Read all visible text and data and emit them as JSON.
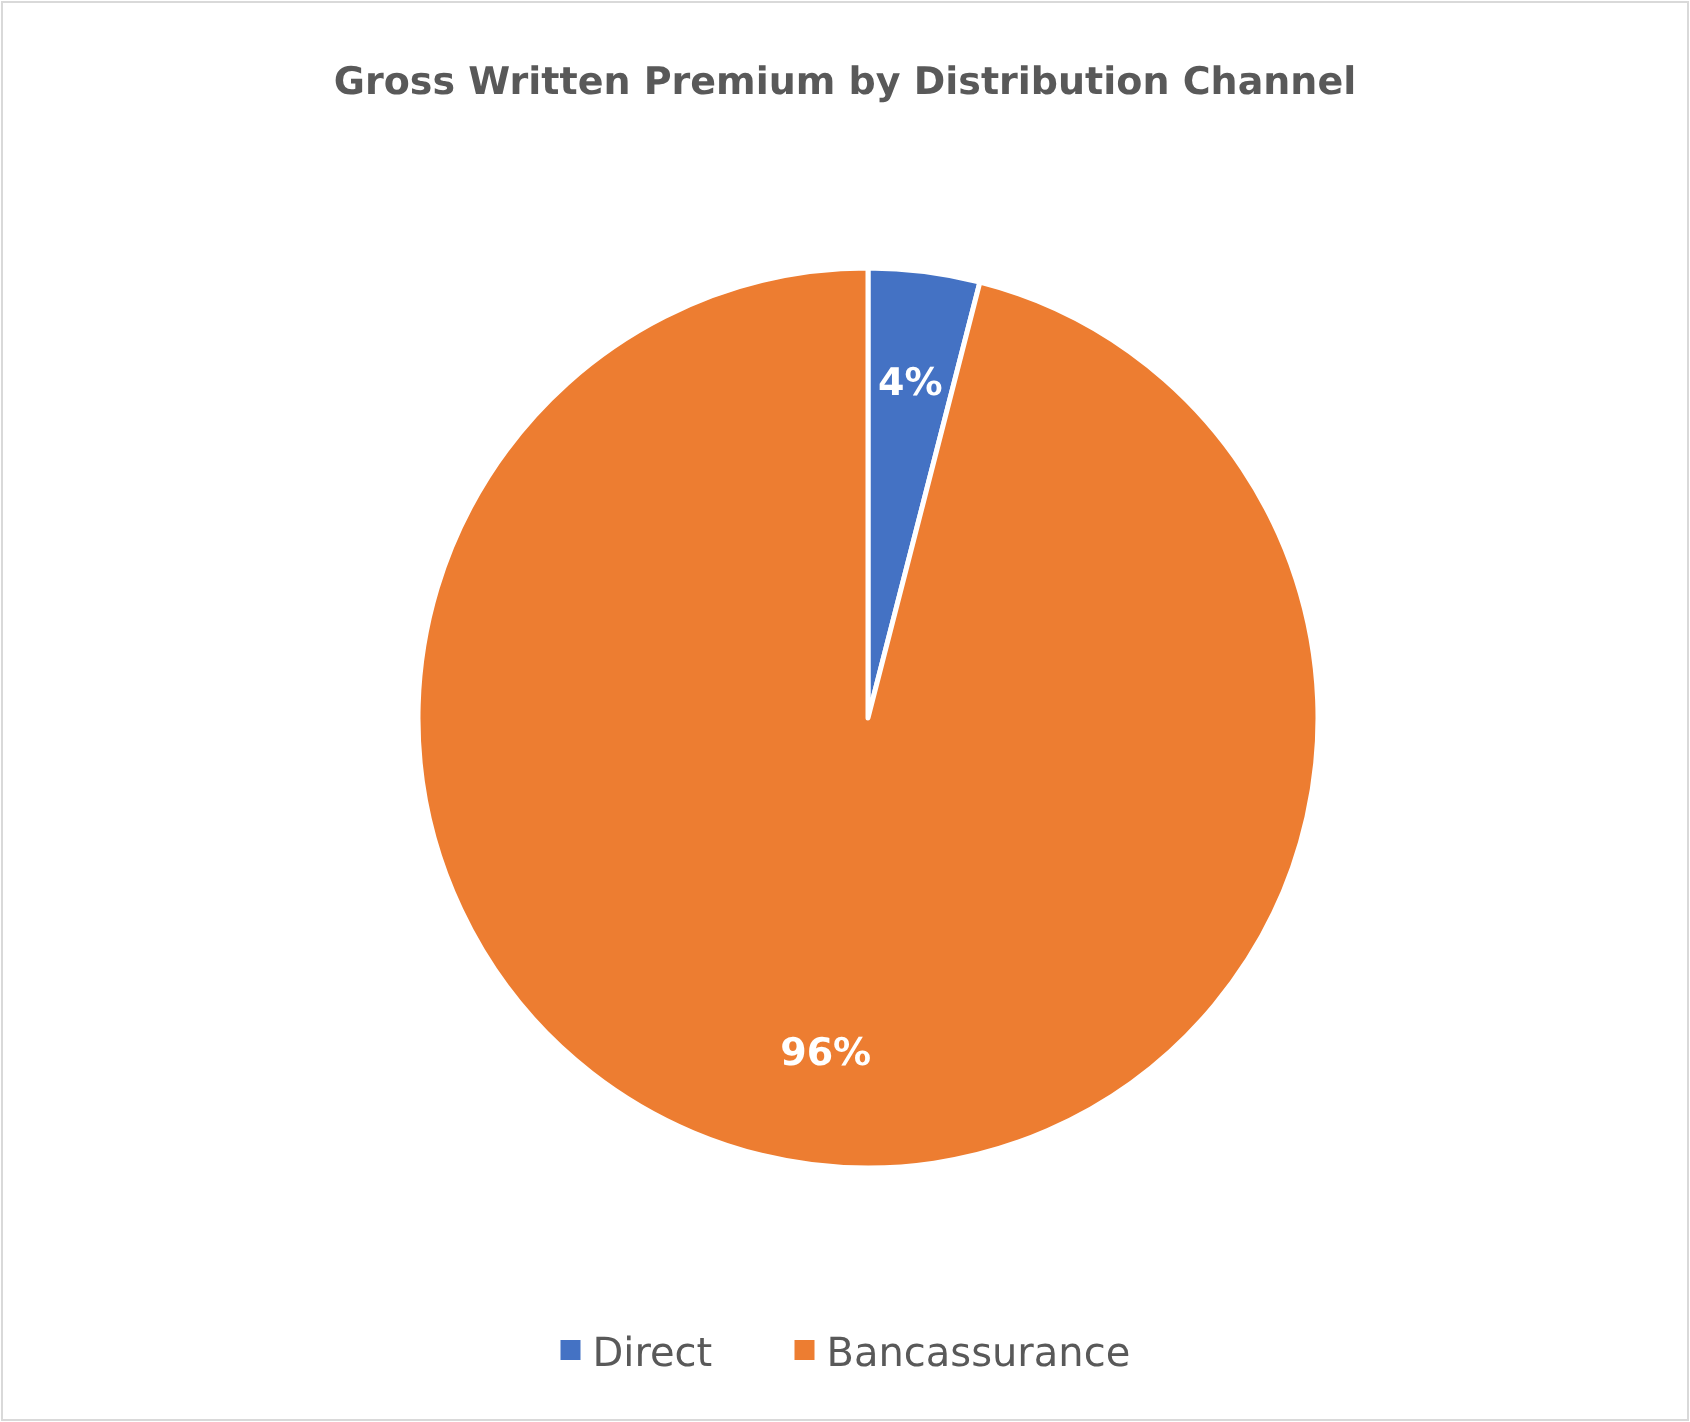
{
  "chart_data": {
    "type": "pie",
    "title": "Gross Written Premium by Distribution Channel",
    "categories": [
      "Direct",
      "Bancassurance"
    ],
    "values": [
      4,
      96
    ],
    "colors": [
      "#4472c4",
      "#ed7d31"
    ],
    "value_labels": [
      "4%",
      "96%"
    ],
    "legend": "bottom"
  }
}
